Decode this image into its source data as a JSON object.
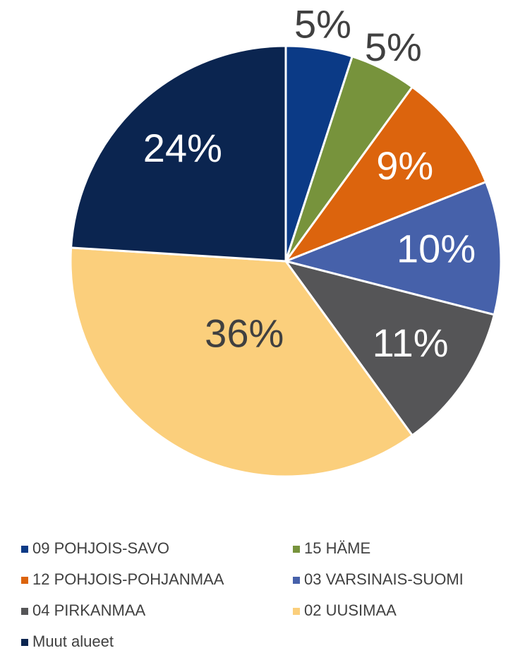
{
  "chart_data": {
    "type": "pie",
    "categories": [
      "09 POHJOIS-SAVO",
      "15 HÄME",
      "12 POHJOIS-POHJANMAA",
      "03 VARSINAIS-SUOMI",
      "04 PIRKANMAA",
      "02 UUSIMAA",
      "Muut alueet"
    ],
    "values": [
      5,
      5,
      9,
      10,
      11,
      36,
      24
    ],
    "value_labels": [
      "5%",
      "5%",
      "9%",
      "10%",
      "11%",
      "36%",
      "24%"
    ],
    "colors": [
      "#0b3a86",
      "#77933c",
      "#dc640d",
      "#4661aa",
      "#555557",
      "#fbcf7c",
      "#0b2550"
    ],
    "legend": "bottom"
  }
}
